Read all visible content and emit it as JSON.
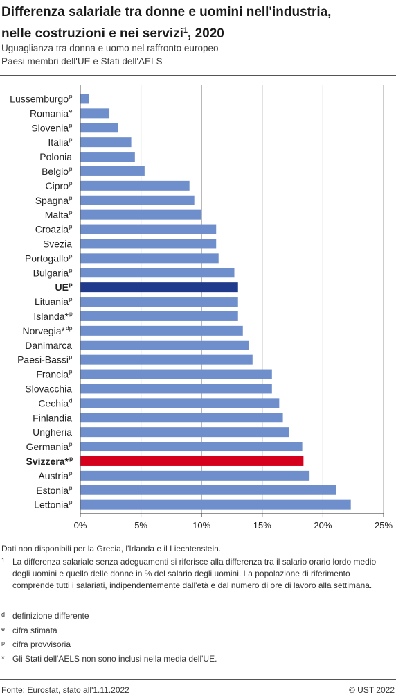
{
  "title": {
    "line1": "Differenza salariale tra donne e uomini nell'industria,",
    "line2": "nelle costruzioni e nei servizi",
    "line2_sup": "1",
    "line2_tail": ", 2020"
  },
  "subtitle": {
    "line1": "Uguaglianza tra donna e uomo nel raffronto europeo",
    "line2": "Paesi membri dell'UE e Stati dell'AELS"
  },
  "colors": {
    "default_bar": "#6f8fcc",
    "highlight_eu": "#1f3a8a",
    "highlight_ch": "#d5001c",
    "grid": "#9a9a9a",
    "axis": "#555555"
  },
  "chart_data": {
    "type": "bar",
    "orientation": "horizontal",
    "grid": true,
    "xlim": [
      0,
      25
    ],
    "xticks": [
      0,
      5,
      10,
      15,
      20,
      25
    ],
    "xtick_labels": [
      "0%",
      "5%",
      "10%",
      "15%",
      "20%",
      "25%"
    ],
    "categories": [
      {
        "name": "Lussemburgo",
        "sup": "p",
        "value": 0.7,
        "highlight": ""
      },
      {
        "name": "Romania",
        "sup": "e",
        "value": 2.4,
        "highlight": ""
      },
      {
        "name": "Slovenia",
        "sup": "p",
        "value": 3.1,
        "highlight": ""
      },
      {
        "name": "Italia",
        "sup": "p",
        "value": 4.2,
        "highlight": ""
      },
      {
        "name": "Polonia",
        "sup": "",
        "value": 4.5,
        "highlight": ""
      },
      {
        "name": "Belgio",
        "sup": "p",
        "value": 5.3,
        "highlight": ""
      },
      {
        "name": "Cipro",
        "sup": "p",
        "value": 9.0,
        "highlight": ""
      },
      {
        "name": "Spagna",
        "sup": "p",
        "value": 9.4,
        "highlight": ""
      },
      {
        "name": "Malta",
        "sup": "p",
        "value": 10.0,
        "highlight": ""
      },
      {
        "name": "Croazia",
        "sup": "p",
        "value": 11.2,
        "highlight": ""
      },
      {
        "name": "Svezia",
        "sup": "",
        "value": 11.2,
        "highlight": ""
      },
      {
        "name": "Portogallo",
        "sup": "p",
        "value": 11.4,
        "highlight": ""
      },
      {
        "name": "Bulgaria",
        "sup": "p",
        "value": 12.7,
        "highlight": ""
      },
      {
        "name": "UE",
        "sup": "p",
        "value": 13.0,
        "highlight": "eu"
      },
      {
        "name": "Lituania",
        "sup": "p",
        "value": 13.0,
        "highlight": ""
      },
      {
        "name": "Islanda*",
        "sup": "p",
        "value": 13.0,
        "highlight": ""
      },
      {
        "name": "Norvegia*",
        "sup": "dp",
        "value": 13.4,
        "highlight": ""
      },
      {
        "name": "Danimarca",
        "sup": "",
        "value": 13.9,
        "highlight": ""
      },
      {
        "name": "Paesi-Bassi",
        "sup": "p",
        "value": 14.2,
        "highlight": ""
      },
      {
        "name": "Francia",
        "sup": "p",
        "value": 15.8,
        "highlight": ""
      },
      {
        "name": "Slovacchia",
        "sup": "",
        "value": 15.8,
        "highlight": ""
      },
      {
        "name": "Cechia",
        "sup": "d",
        "value": 16.4,
        "highlight": ""
      },
      {
        "name": "Finlandia",
        "sup": "",
        "value": 16.7,
        "highlight": ""
      },
      {
        "name": "Ungheria",
        "sup": "",
        "value": 17.2,
        "highlight": ""
      },
      {
        "name": "Germania",
        "sup": "p",
        "value": 18.3,
        "highlight": ""
      },
      {
        "name": "Svizzera*",
        "sup": "p",
        "value": 18.4,
        "highlight": "ch"
      },
      {
        "name": "Austria",
        "sup": "p",
        "value": 18.9,
        "highlight": ""
      },
      {
        "name": "Estonia",
        "sup": "p",
        "value": 21.1,
        "highlight": ""
      },
      {
        "name": "Lettonia",
        "sup": "p",
        "value": 22.3,
        "highlight": ""
      }
    ]
  },
  "notes": {
    "unavailable": "Dati non disponibili per la Grecia, l'Irlanda e il Liechtenstein.",
    "footnotes": [
      {
        "mark": "1",
        "text": "La differenza salariale senza adeguamenti si riferisce alla differenza tra il salario orario lordo medio degli uomini e quello delle donne in % del salario degli uomini. La popolazione di riferimento comprende tutti i salariati, indipendentemente dall'età e dal numero di ore di lavoro alla settimana."
      },
      {
        "mark": "d",
        "text": "definizione differente"
      },
      {
        "mark": "e",
        "text": "cifra stimata"
      },
      {
        "mark": "p",
        "text": "cifra provvisoria"
      },
      {
        "mark": "*",
        "text": "Gli Stati dell'AELS non sono inclusi nella media dell'UE."
      }
    ]
  },
  "footer": {
    "source": "Fonte: Eurostat, stato all'1.11.2022",
    "copyright": "© UST 2022"
  }
}
